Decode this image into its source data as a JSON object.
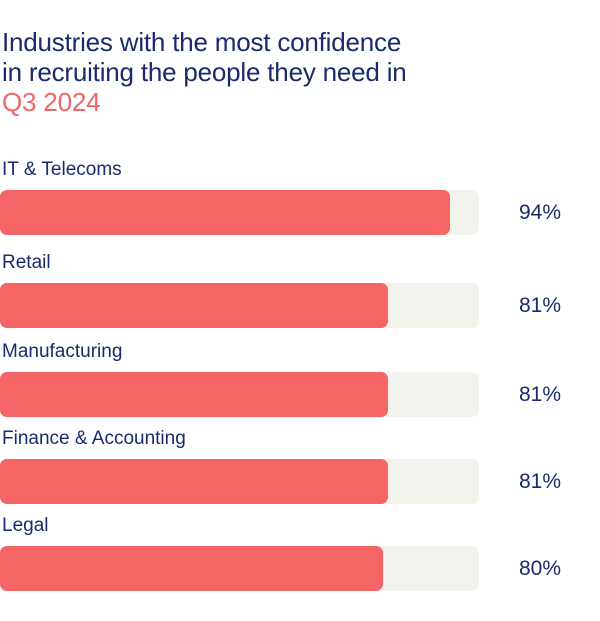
{
  "title": {
    "line1": "Industries with the most confidence",
    "line2": "in recruiting the people they need in",
    "line3": "Q3 2024"
  },
  "chart_data": {
    "type": "bar",
    "orientation": "horizontal",
    "categories": [
      "IT & Telecoms",
      "Retail",
      "Manufacturing",
      "Finance & Accounting",
      "Legal"
    ],
    "values": [
      94,
      81,
      81,
      81,
      80
    ],
    "value_labels": [
      "94%",
      "81%",
      "81%",
      "81%",
      "80%"
    ],
    "unit": "%",
    "xlim": [
      0,
      100
    ],
    "grid": false,
    "colors": {
      "bar": "#f56565",
      "track": "#f3f2ed",
      "text": "#1a2a6c",
      "accent": "#f06666"
    }
  }
}
